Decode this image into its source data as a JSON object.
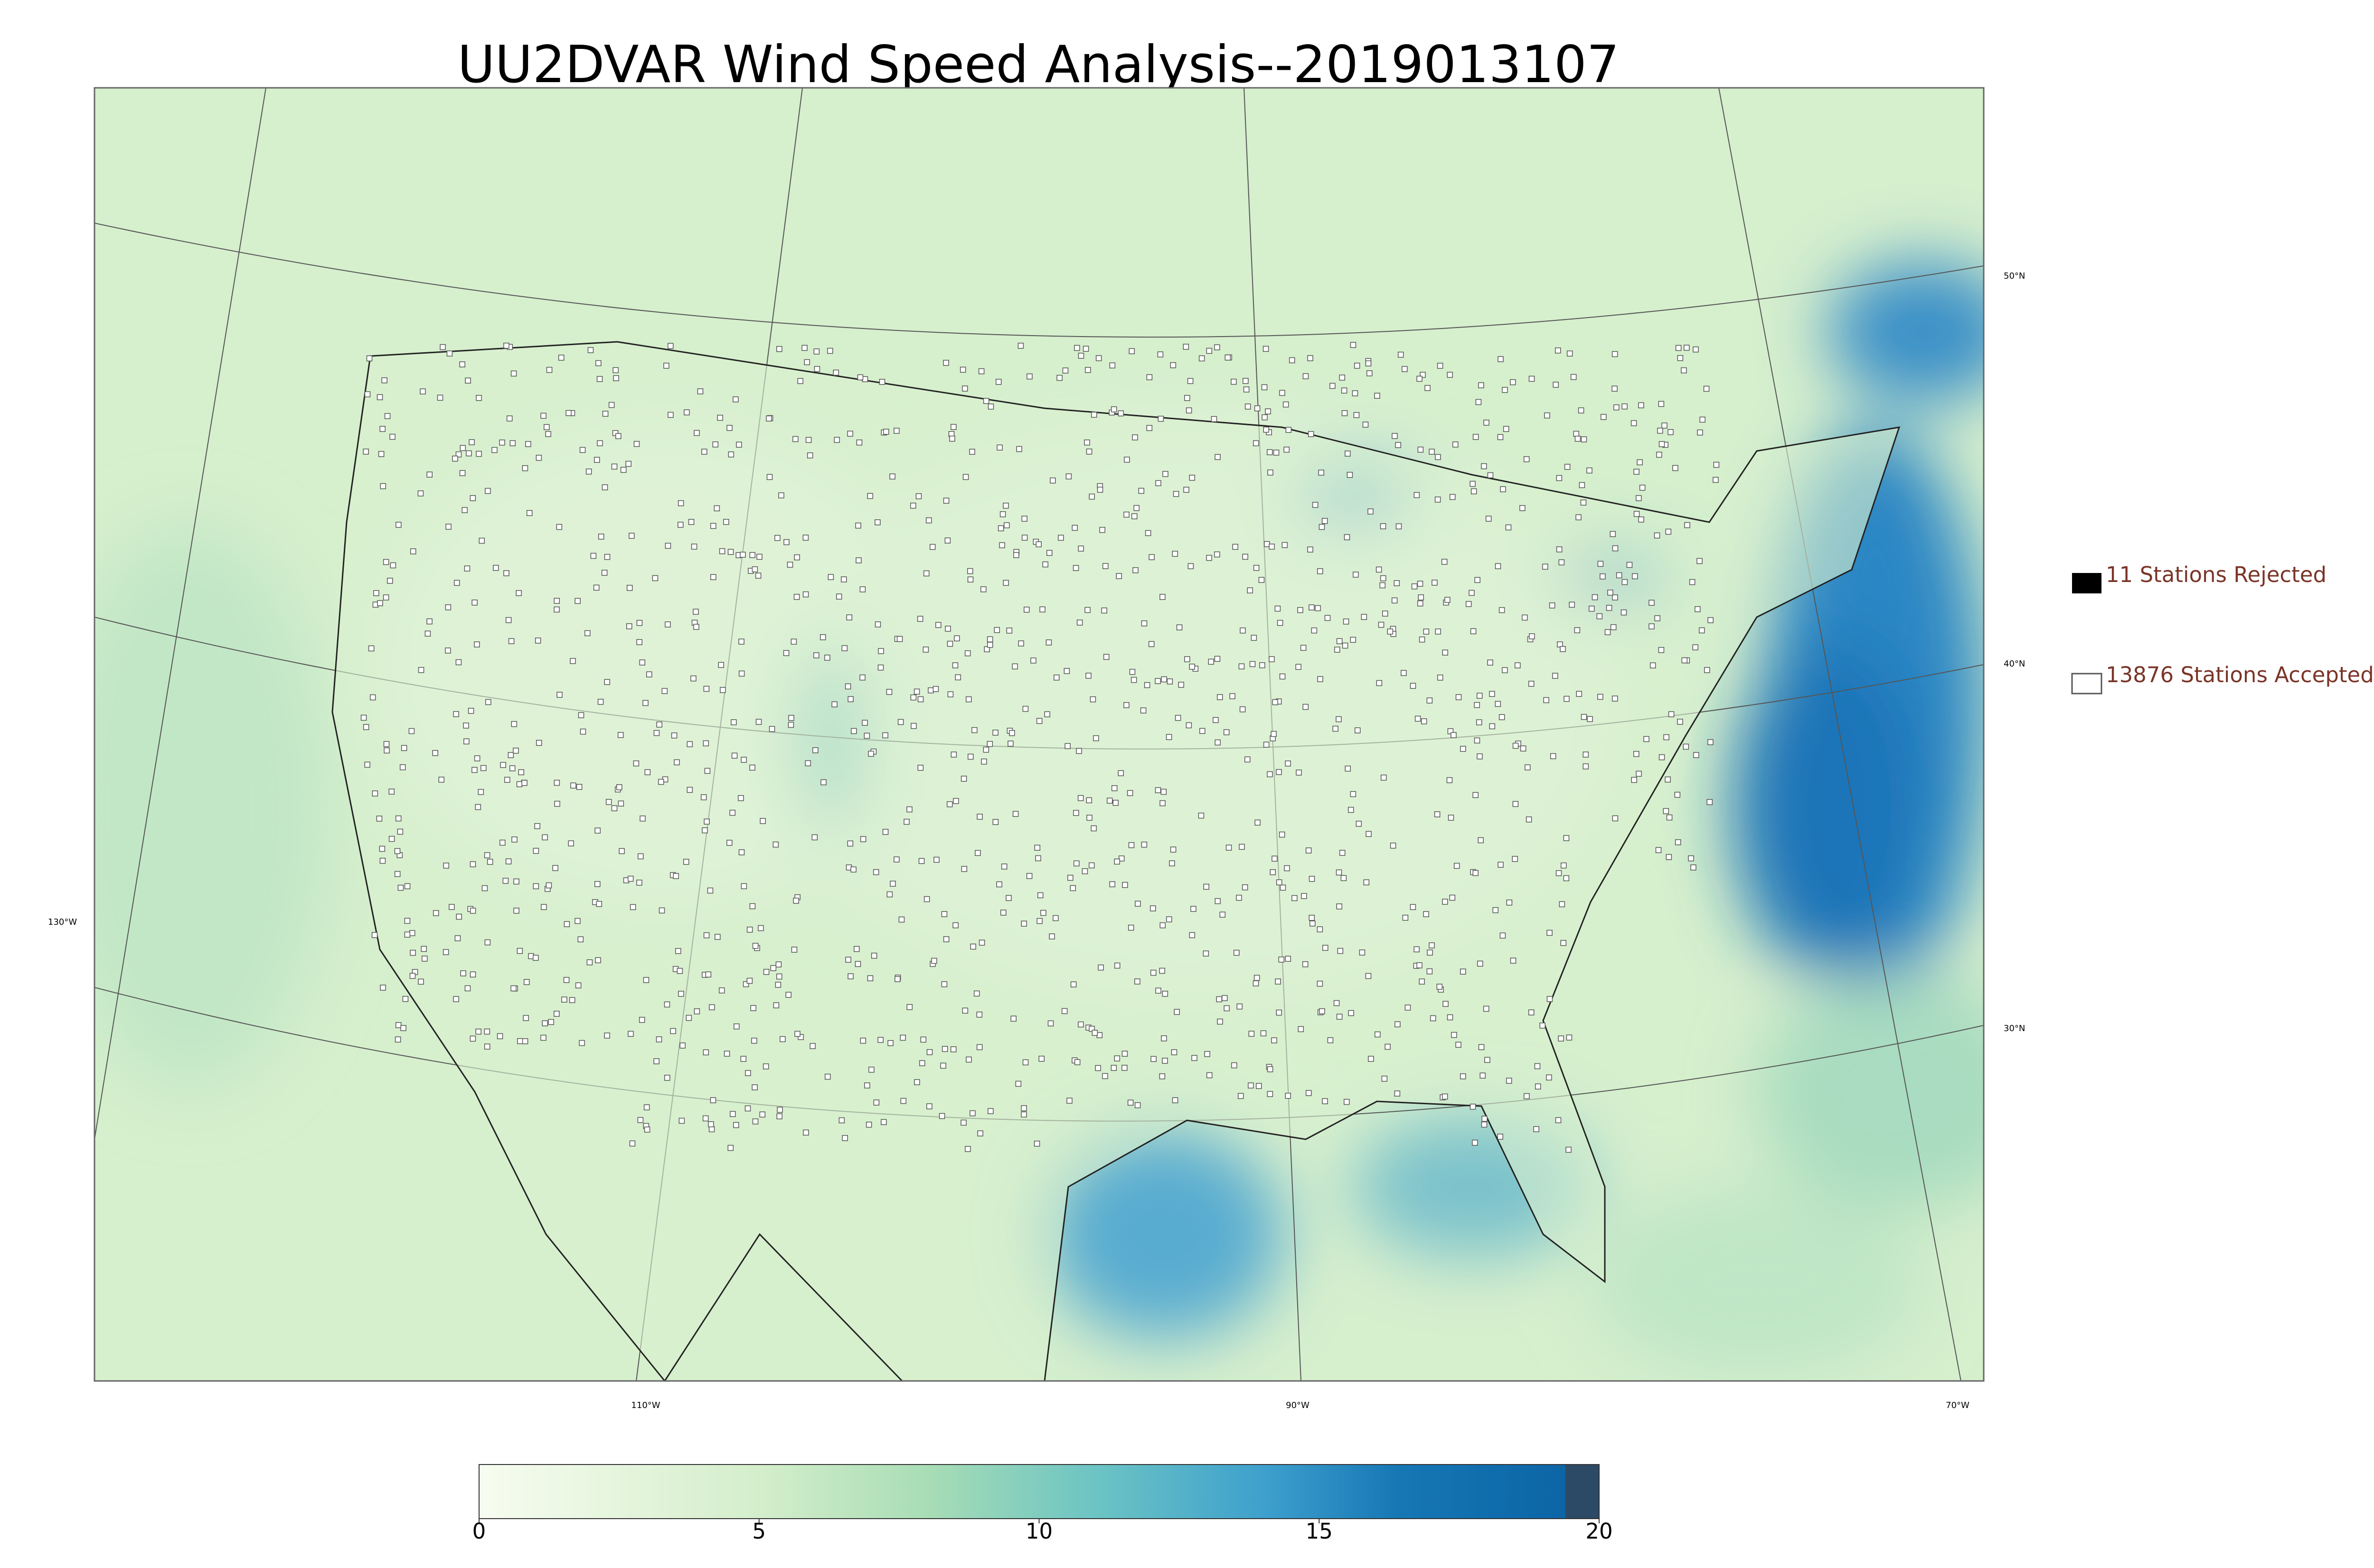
{
  "title": "UU2DVAR Wind Speed Analysis--2019013107",
  "legend": {
    "rejected": "11 Stations Rejected",
    "accepted": "13876 Stations Accepted"
  },
  "latitude_labels": [
    "50°N",
    "40°N",
    "30°N"
  ],
  "longitude_labels": [
    "130°W",
    "110°W",
    "90°W",
    "70°W"
  ],
  "colorbar": {
    "lim": [
      0,
      20
    ],
    "ticks": [
      0,
      5,
      10,
      15,
      20
    ]
  }
}
